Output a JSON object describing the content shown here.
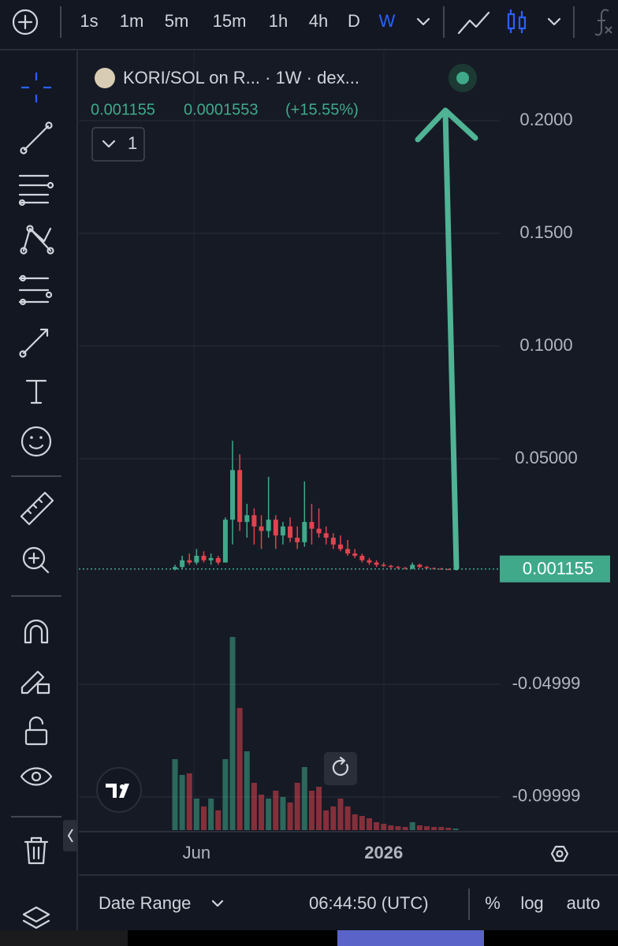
{
  "toolbar": {
    "intervals": [
      "1s",
      "1m",
      "5m",
      "15m",
      "1h",
      "4h",
      "D",
      "W"
    ],
    "active_interval_index": 7
  },
  "chart_data": {
    "type": "candlestick",
    "title": "KORI/SOL on R... · 1W · dex...",
    "change": 0.0001553,
    "change_percent_label": "(+15.55%)",
    "indicator_count": "1",
    "up_color": "#3fa98a",
    "down_color": "#e0434f",
    "categories": [
      null,
      null,
      null,
      "Jun",
      null,
      null,
      null,
      null,
      null,
      null,
      null,
      null,
      null,
      null,
      null,
      null,
      null,
      null,
      null,
      null,
      null,
      null,
      null,
      null,
      null,
      null,
      null,
      null,
      null,
      "2026",
      null,
      null,
      null,
      null,
      null,
      null,
      null,
      null,
      null,
      null
    ],
    "open": [
      0.001,
      0.002,
      0.005,
      0.004,
      0.007,
      0.005,
      0.006,
      0.004,
      0.023,
      0.045,
      0.022,
      0.025,
      0.02,
      0.018,
      0.023,
      0.016,
      0.02,
      0.015,
      0.013,
      0.022,
      0.019,
      0.017,
      0.015,
      0.012,
      0.01,
      0.008,
      0.007,
      0.005,
      0.004,
      0.003,
      0.0025,
      0.002,
      0.0016,
      0.0013,
      0.003,
      0.002,
      0.0015,
      0.0012,
      0.001,
      0.00099
    ],
    "high": [
      0.003,
      0.007,
      0.008,
      0.01,
      0.009,
      0.008,
      0.007,
      0.024,
      0.058,
      0.052,
      0.03,
      0.028,
      0.025,
      0.042,
      0.025,
      0.022,
      0.024,
      0.02,
      0.04,
      0.03,
      0.028,
      0.02,
      0.017,
      0.016,
      0.014,
      0.01,
      0.008,
      0.006,
      0.005,
      0.004,
      0.003,
      0.0025,
      0.002,
      0.004,
      0.0035,
      0.0025,
      0.0018,
      0.0016,
      0.0013,
      0.0013
    ],
    "low": [
      0.0005,
      0.001,
      0.003,
      0.003,
      0.004,
      0.003,
      0.003,
      0.004,
      0.012,
      0.018,
      0.015,
      0.012,
      0.01,
      0.015,
      0.01,
      0.012,
      0.013,
      0.01,
      0.011,
      0.012,
      0.015,
      0.012,
      0.01,
      0.009,
      0.007,
      0.006,
      0.004,
      0.003,
      0.002,
      0.002,
      0.0015,
      0.0012,
      0.001,
      0.001,
      0.0015,
      0.0012,
      0.001,
      0.0009,
      0.0008,
      0.0009
    ],
    "close": [
      0.002,
      0.005,
      0.004,
      0.007,
      0.005,
      0.006,
      0.004,
      0.023,
      0.045,
      0.022,
      0.025,
      0.02,
      0.018,
      0.023,
      0.016,
      0.02,
      0.015,
      0.013,
      0.022,
      0.019,
      0.017,
      0.015,
      0.012,
      0.01,
      0.008,
      0.007,
      0.005,
      0.004,
      0.003,
      0.0025,
      0.002,
      0.0016,
      0.0013,
      0.003,
      0.002,
      0.0015,
      0.0012,
      0.001,
      0.00099,
      0.001155
    ],
    "volume": [
      90,
      70,
      72,
      40,
      30,
      40,
      25,
      90,
      245,
      155,
      100,
      60,
      45,
      40,
      50,
      42,
      35,
      60,
      80,
      50,
      55,
      25,
      30,
      40,
      30,
      20,
      18,
      15,
      10,
      8,
      6,
      5,
      4,
      10,
      6,
      5,
      4,
      4,
      3,
      2
    ],
    "ylim": [
      -0.1154,
      0.2308
    ],
    "yticks": [
      {
        "value": 0.2,
        "label": "0.2000"
      },
      {
        "value": 0.15,
        "label": "0.1500"
      },
      {
        "value": 0.1,
        "label": "0.1000"
      },
      {
        "value": 0.05,
        "label": "0.05000"
      },
      -0.04999,
      -0.09999
    ],
    "grid": true
  },
  "footer": {
    "date_range": "Date Range",
    "time": "06:44:50 (UTC)",
    "percent": "%",
    "log": "log",
    "auto": "auto"
  }
}
